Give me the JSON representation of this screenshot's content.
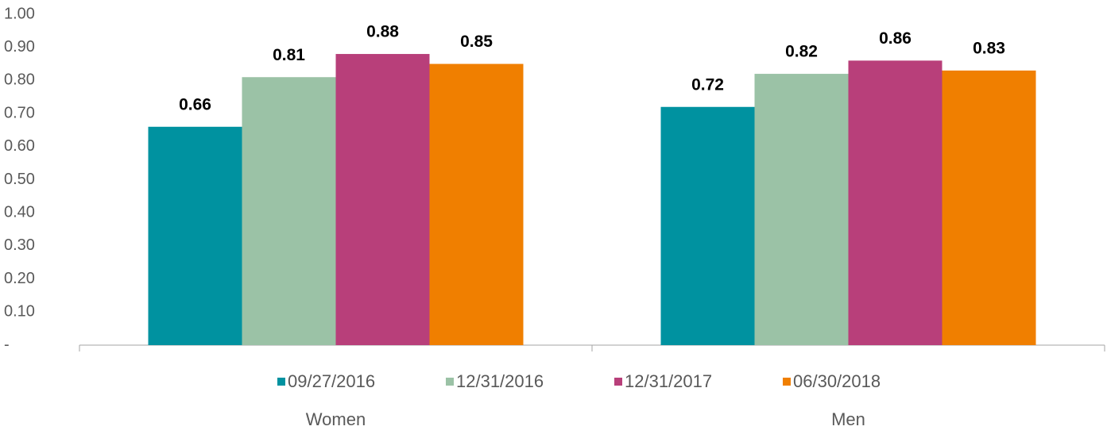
{
  "chart_data": {
    "type": "bar",
    "categories": [
      "Women",
      "Men"
    ],
    "series": [
      {
        "name": "09/27/2016",
        "color": "#0092a0",
        "values": [
          0.66,
          0.72
        ]
      },
      {
        "name": "12/31/2016",
        "color": "#9bc2a6",
        "values": [
          0.81,
          0.82
        ]
      },
      {
        "name": "12/31/2017",
        "color": "#b83f7a",
        "values": [
          0.88,
          0.86
        ]
      },
      {
        "name": "06/30/2018",
        "color": "#f07f00",
        "values": [
          0.85,
          0.83
        ]
      }
    ],
    "ylim": [
      0,
      1
    ],
    "yticks": [
      {
        "value": 0,
        "label": "-"
      },
      {
        "value": 0.1,
        "label": "0.10"
      },
      {
        "value": 0.2,
        "label": "0.20"
      },
      {
        "value": 0.3,
        "label": "0.30"
      },
      {
        "value": 0.4,
        "label": "0.40"
      },
      {
        "value": 0.5,
        "label": "0.50"
      },
      {
        "value": 0.6,
        "label": "0.60"
      },
      {
        "value": 0.7,
        "label": "0.70"
      },
      {
        "value": 0.8,
        "label": "0.80"
      },
      {
        "value": 0.9,
        "label": "0.90"
      },
      {
        "value": 1,
        "label": "1.00"
      }
    ],
    "grid": false
  }
}
